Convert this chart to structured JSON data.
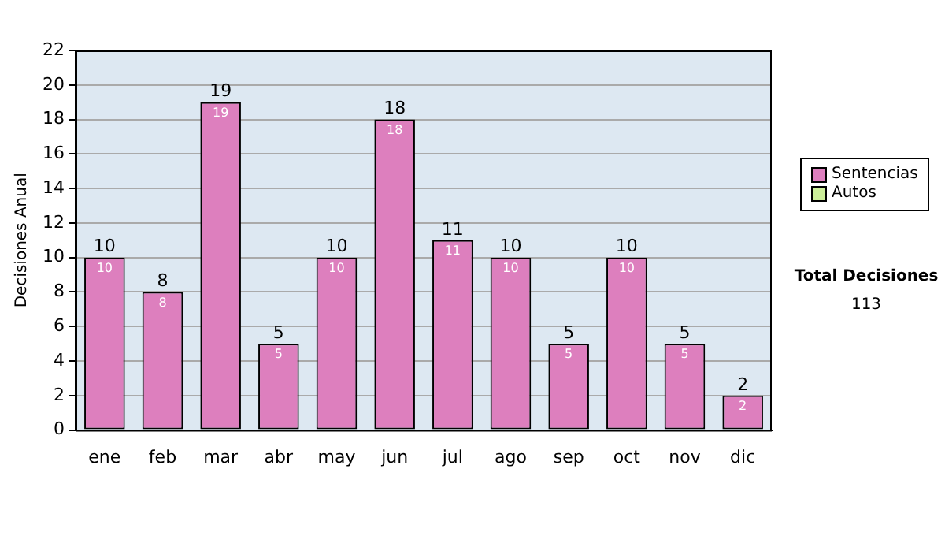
{
  "chart_data": {
    "type": "bar",
    "stacked": true,
    "ylabel": "Decisiones Anual",
    "categories": [
      "ene",
      "feb",
      "mar",
      "abr",
      "may",
      "jun",
      "jul",
      "ago",
      "sep",
      "oct",
      "nov",
      "dic"
    ],
    "series": [
      {
        "name": "Sentencias",
        "color": "#dd7fbe",
        "values": [
          10,
          8,
          19,
          5,
          10,
          18,
          11,
          10,
          5,
          10,
          5,
          2
        ],
        "value_labels": [
          "10",
          "8",
          "19",
          "5",
          "10",
          "18",
          "11",
          "10",
          "5",
          "10",
          "5",
          "2"
        ]
      },
      {
        "name": "Autos",
        "color": "#ccee99",
        "values": [
          0,
          0,
          0,
          0,
          0,
          0,
          0,
          0,
          0,
          0,
          0,
          0
        ]
      }
    ],
    "totals": [
      "10",
      "8",
      "19",
      "5",
      "10",
      "18",
      "11",
      "10",
      "5",
      "10",
      "5",
      "2"
    ],
    "ylim": [
      0,
      22
    ],
    "yticks": [
      0,
      2,
      4,
      6,
      8,
      10,
      12,
      14,
      16,
      18,
      20,
      22
    ],
    "grid": "y",
    "legend": "right",
    "annotations": [
      "Total Decisiones",
      "113"
    ]
  }
}
